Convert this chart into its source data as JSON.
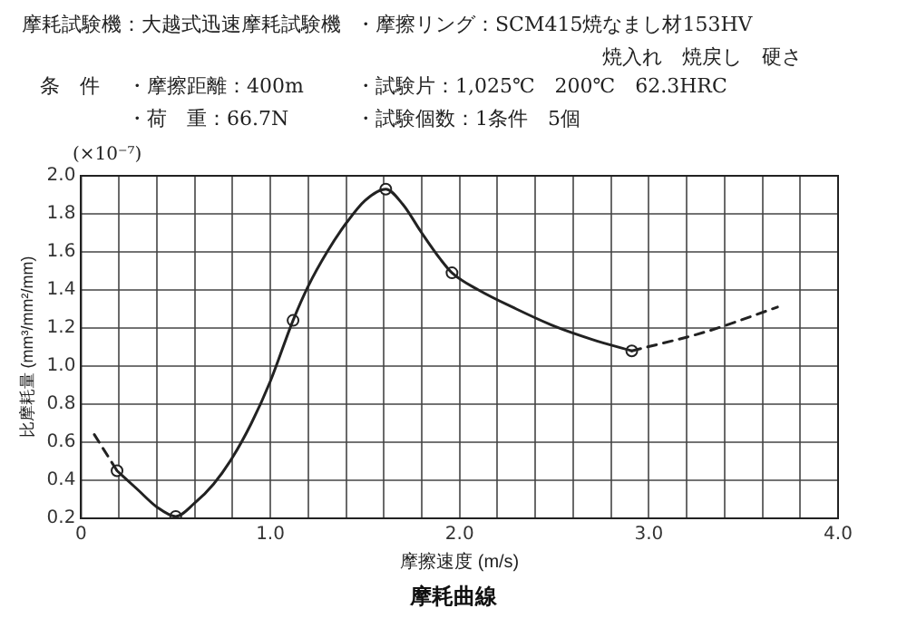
{
  "chart_data": {
    "type": "line",
    "title": "摩耗曲線",
    "xlabel": "摩擦速度 (m/s)",
    "ylabel": "比摩耗量 (mm³/mm²/mm)",
    "annotations": [
      "摩耗試験機：大越式迅速摩耗試験機",
      "・摩擦リング：SCM415焼なまし材153HV",
      "焼入れ　焼戻し　硬さ",
      "条　件",
      "・摩擦距離：400m",
      "・試験片：1,025℃　200℃　62.3HRC",
      "・荷　重：66.7N",
      "・試験個数：1条件　5個",
      "(×10⁻⁷)"
    ],
    "series": [
      {
        "color": "#222222",
        "marker": "none",
        "line_style": "solid",
        "x": [
          0.19,
          0.3,
          0.4,
          0.5,
          0.6,
          0.7,
          0.8,
          0.9,
          1.0,
          1.12,
          1.2,
          1.3,
          1.4,
          1.5,
          1.61,
          1.7,
          1.8,
          1.9,
          1.96,
          2.1,
          2.3,
          2.5,
          2.7,
          2.91
        ],
        "values": [
          0.45,
          0.35,
          0.26,
          0.21,
          0.28,
          0.38,
          0.52,
          0.7,
          0.92,
          1.24,
          1.42,
          1.6,
          1.75,
          1.87,
          1.93,
          1.85,
          1.7,
          1.56,
          1.49,
          1.4,
          1.3,
          1.21,
          1.14,
          1.08
        ]
      },
      {
        "color": "#222222",
        "marker": "none",
        "line_style": "dashed",
        "x": [
          0.07,
          0.19
        ],
        "values": [
          0.64,
          0.45
        ]
      },
      {
        "color": "#222222",
        "marker": "none",
        "line_style": "dashed",
        "x": [
          2.91,
          3.3,
          3.68
        ],
        "values": [
          1.08,
          1.18,
          1.31
        ]
      },
      {
        "type": "scatter",
        "color": "#222222",
        "marker": "circle",
        "x": [
          0.19,
          0.5,
          1.12,
          1.61,
          1.96,
          2.91
        ],
        "values": [
          0.45,
          0.21,
          1.24,
          1.93,
          1.49,
          1.08
        ]
      }
    ],
    "xlim": [
      0,
      4
    ],
    "ylim": [
      0.2,
      2
    ],
    "xticks": [
      {
        "value": 0,
        "label": "0"
      },
      {
        "value": 0.2,
        "label": null
      },
      {
        "value": 0.4,
        "label": null
      },
      {
        "value": 0.6,
        "label": null
      },
      {
        "value": 0.8,
        "label": null
      },
      {
        "value": 1,
        "label": "1.0"
      },
      {
        "value": 1.2,
        "label": null
      },
      {
        "value": 1.4,
        "label": null
      },
      {
        "value": 1.6,
        "label": null
      },
      {
        "value": 1.8,
        "label": null
      },
      {
        "value": 2,
        "label": "2.0"
      },
      {
        "value": 2.2,
        "label": null
      },
      {
        "value": 2.4,
        "label": null
      },
      {
        "value": 2.6,
        "label": null
      },
      {
        "value": 2.8,
        "label": null
      },
      {
        "value": 3,
        "label": "3.0"
      },
      {
        "value": 3.2,
        "label": null
      },
      {
        "value": 3.4,
        "label": null
      },
      {
        "value": 3.6,
        "label": null
      },
      {
        "value": 3.8,
        "label": null
      },
      {
        "value": 4,
        "label": "4.0"
      }
    ],
    "yticks": [
      0.2,
      0.4,
      0.6,
      0.8,
      {
        "value": 1,
        "label": "1.0"
      },
      1.2,
      1.4,
      1.6,
      1.8,
      {
        "value": 2,
        "label": "2.0"
      }
    ],
    "grid": true,
    "legend": false
  }
}
